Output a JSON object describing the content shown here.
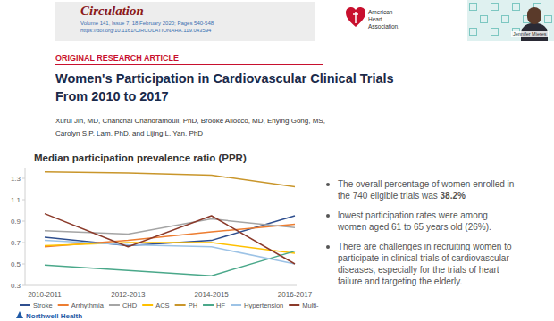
{
  "page": {
    "journal": "Circulation",
    "issue": "Volume 141, Issue 7, 18 February 2020; Pages 540-548",
    "doi": "https://doi.org/10.1161/CIRCULATIONAHA.119.043594",
    "society": "American Heart Association.",
    "speaker": "Jennifer Mieres",
    "section": "ORIGINAL RESEARCH ARTICLE",
    "title": "Women's Participation in Cardiovascular Clinical Trials From 2010 to 2017",
    "authors": [
      "Xurui Jin, MD, Chanchal Chandramouli, PhD, Brooke Allocco, MD, Enying Gong, MS,",
      "Carolyn S.P. Lam, PhD, and Lijing L. Yan, PhD"
    ],
    "bullets": [
      {
        "text": "The overall percentage of women enrolled in the 740 eligible trials was",
        "bold": "38.2%"
      },
      {
        "text": "lowest participation rates were among women aged 61 to 65 years old (26%)."
      },
      {
        "text": "There are challenges in recruiting women to participate in clinical trials of cardiovascular diseases, especially for the trials of heart failure and targeting the elderly."
      }
    ],
    "logo": "Northwell Health"
  },
  "chart_data": {
    "type": "line",
    "title": "Median participation prevalence ratio (PPR)",
    "categories": [
      "2010-2011",
      "2012-2013",
      "2014-2015",
      "2016-2017"
    ],
    "series": [
      {
        "name": "Stroke",
        "color": "#2f4f8f",
        "values": [
          0.75,
          0.67,
          0.72,
          0.95
        ]
      },
      {
        "name": "Arrhythmia",
        "color": "#ed7d31",
        "values": [
          0.66,
          0.72,
          0.8,
          0.87
        ]
      },
      {
        "name": "CHD",
        "color": "#a5a5a5",
        "values": [
          0.81,
          0.78,
          0.92,
          0.84
        ]
      },
      {
        "name": "ACS",
        "color": "#ffc000",
        "values": [
          0.67,
          0.7,
          0.7,
          0.6
        ]
      },
      {
        "name": "PH",
        "color": "#c9962b",
        "values": [
          1.36,
          1.35,
          1.33,
          1.22
        ]
      },
      {
        "name": "HF",
        "color": "#4aa88a",
        "values": [
          0.49,
          0.44,
          0.39,
          0.62
        ]
      },
      {
        "name": "Hypertension",
        "color": "#9dc3e6",
        "values": [
          0.72,
          0.68,
          0.66,
          0.5
        ]
      },
      {
        "name": "Multi-",
        "color": "#8b3a2a",
        "values": [
          0.97,
          0.66,
          0.95,
          0.5
        ]
      }
    ],
    "ylim": [
      0.3,
      1.4
    ],
    "yticks": [
      0.3,
      0.5,
      0.7,
      0.9,
      1.1,
      1.3
    ],
    "grid": false,
    "legend": "bottom"
  }
}
